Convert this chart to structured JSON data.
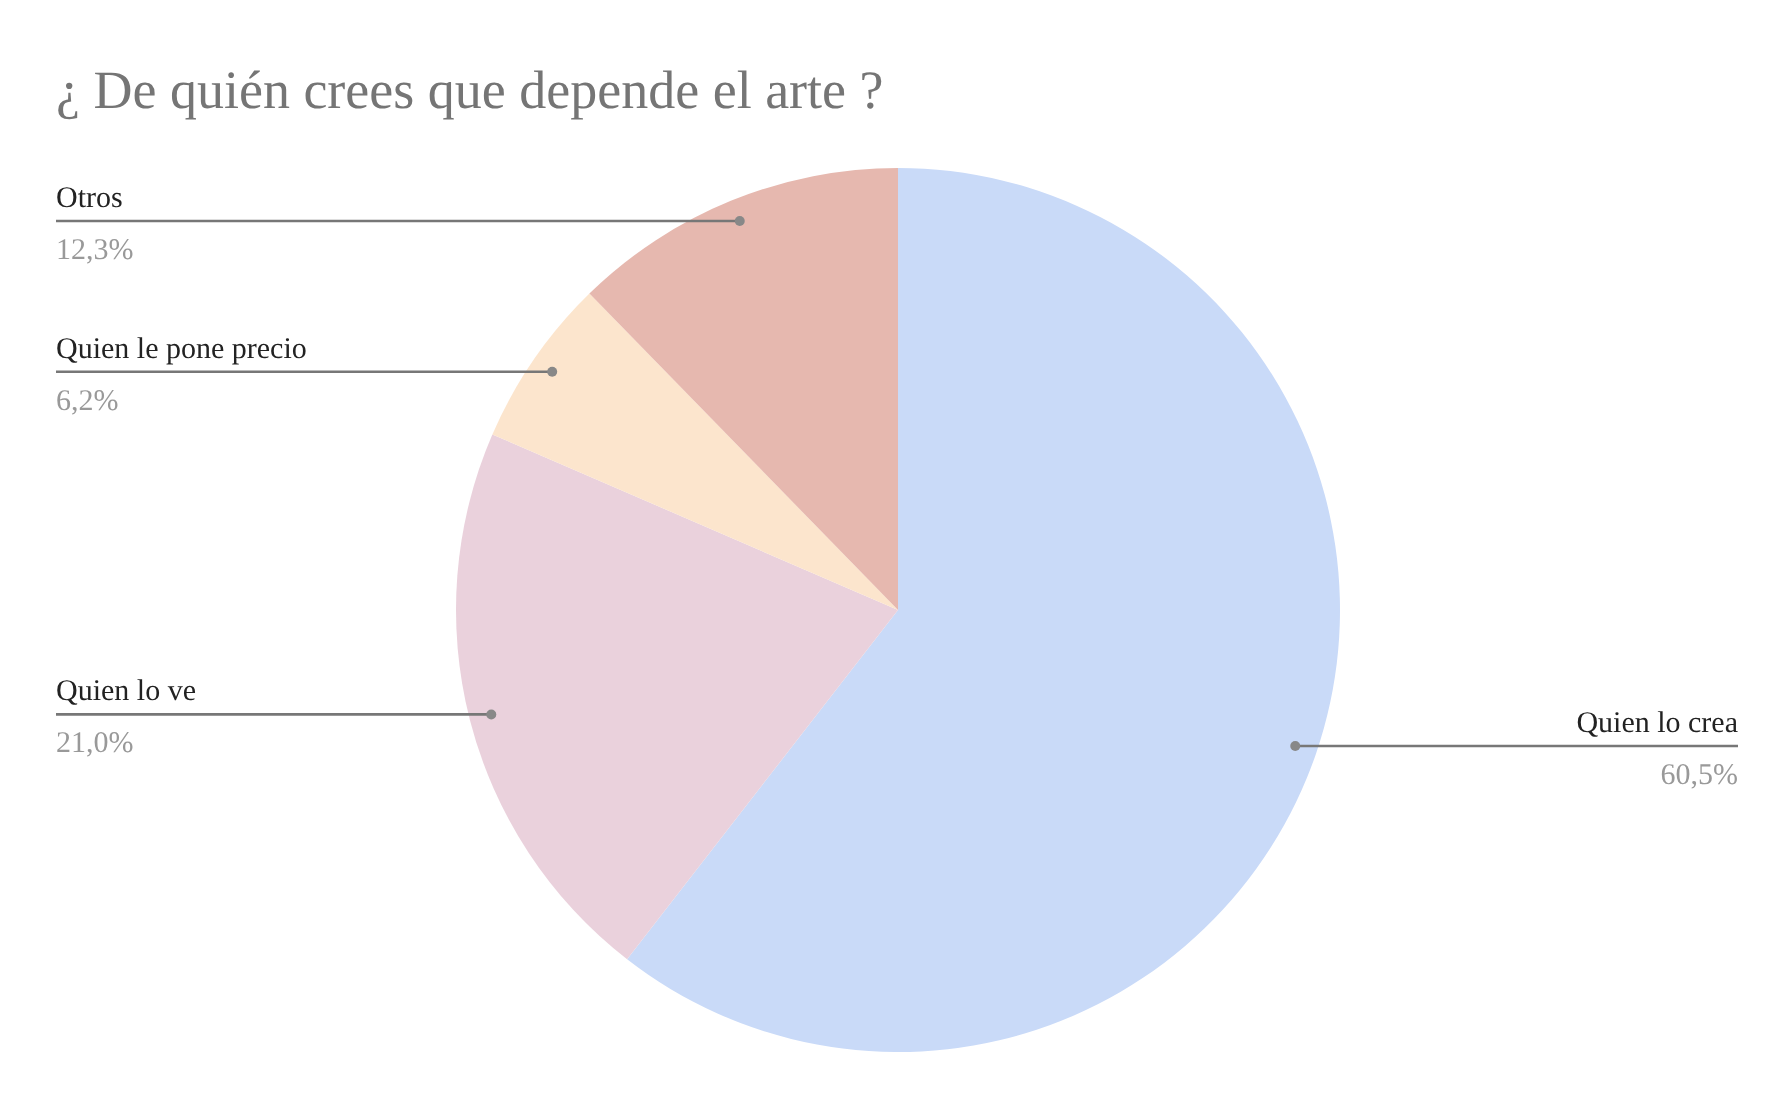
{
  "chart_data": {
    "type": "pie",
    "title": "¿ De quién crees que depende el arte ?",
    "categories": [
      "Quien lo crea",
      "Quien lo ve",
      "Quien le pone precio",
      "Otros"
    ],
    "values": [
      60.5,
      21.0,
      6.2,
      12.3
    ],
    "colors": [
      "#c9daf8",
      "#ead1dc",
      "#fce5cd",
      "#e6b8af"
    ],
    "value_labels": [
      "60,5%",
      "21,0%",
      "6,2%",
      "12,3%"
    ],
    "legend": false
  }
}
